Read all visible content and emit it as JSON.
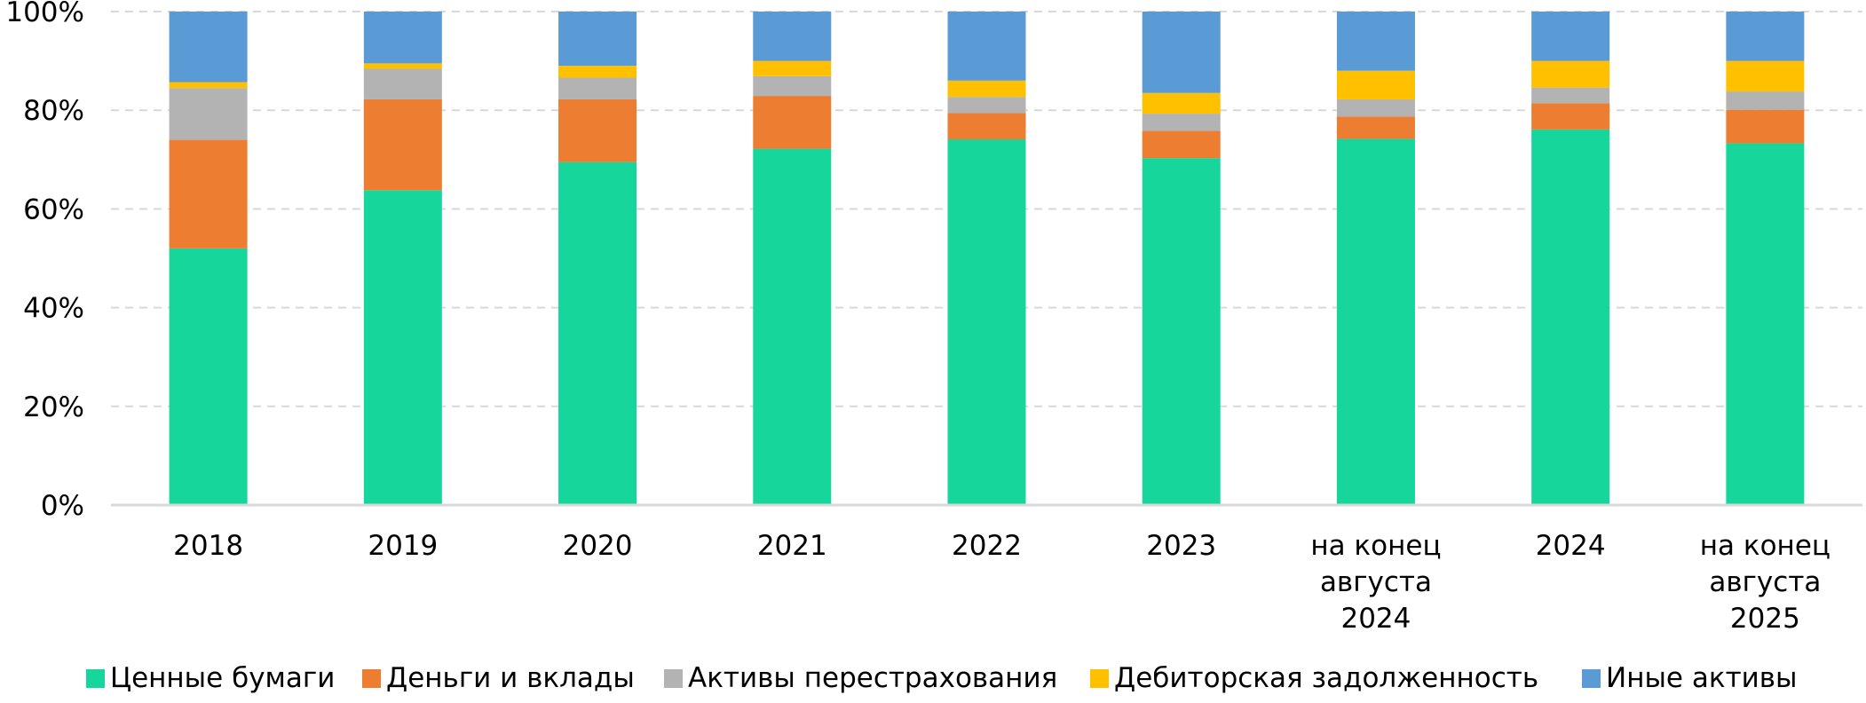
{
  "chart_data": {
    "type": "bar",
    "stacked": true,
    "categories": [
      [
        "2018"
      ],
      [
        "2019"
      ],
      [
        "2020"
      ],
      [
        "2021"
      ],
      [
        "2022"
      ],
      [
        "2023"
      ],
      [
        "на конец",
        "августа",
        "2024"
      ],
      [
        "2024"
      ],
      [
        "на конец",
        "августа",
        "2025"
      ]
    ],
    "series": [
      {
        "name": "Ценные бумаги",
        "color": "#17d69c",
        "values": [
          52.0,
          63.8,
          69.5,
          72.2,
          74.1,
          70.3,
          74.2,
          76.1,
          73.3
        ]
      },
      {
        "name": "Деньги и вклады",
        "color": "#ed7d31",
        "values": [
          22.0,
          18.4,
          12.7,
          10.7,
          5.3,
          5.5,
          4.5,
          5.3,
          6.8
        ]
      },
      {
        "name": "Активы перестрахования",
        "color": "#b3b3b3",
        "values": [
          10.5,
          6.2,
          4.4,
          4.0,
          3.3,
          3.5,
          3.5,
          3.2,
          3.7
        ]
      },
      {
        "name": "Дебиторская задолженность",
        "color": "#ffc000",
        "values": [
          1.2,
          1.1,
          2.4,
          3.1,
          3.3,
          4.2,
          5.8,
          5.4,
          6.2
        ]
      },
      {
        "name": "Иные активы",
        "color": "#5b9bd5",
        "values": [
          14.3,
          10.5,
          11.0,
          10.0,
          14.0,
          16.5,
          12.0,
          10.0,
          10.0
        ]
      }
    ],
    "y_ticks": [
      "0%",
      "20%",
      "40%",
      "60%",
      "80%",
      "100%"
    ],
    "ylim": [
      0,
      100
    ],
    "grid": true,
    "grid_style": "dashed",
    "legend_position": "bottom"
  }
}
